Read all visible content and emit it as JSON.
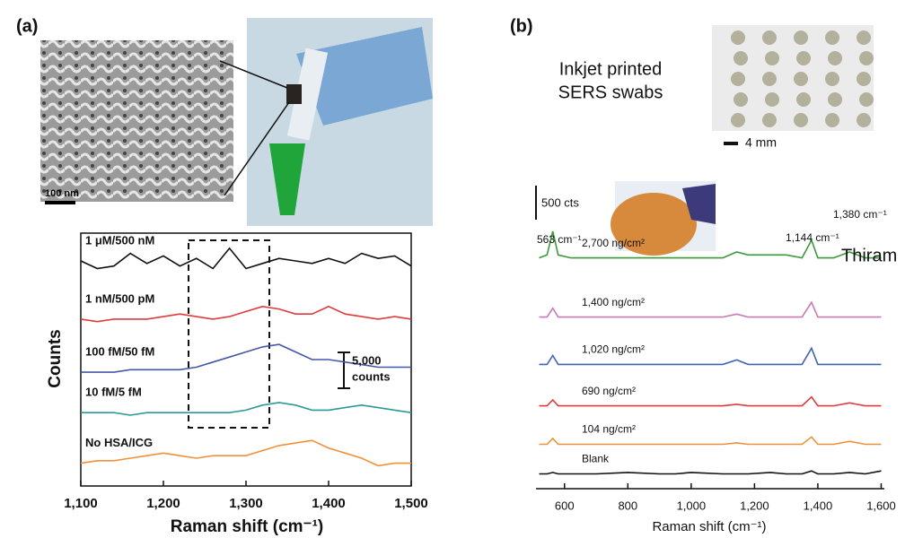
{
  "chart_data": [
    {
      "type": "line",
      "label": "(a)",
      "xlabel": "Raman shift (cm⁻¹)",
      "ylabel": "Counts",
      "xlim": [
        1100,
        1500
      ],
      "xticks": [
        {
          "value": 1100,
          "label": "1,100"
        },
        {
          "value": 1200,
          "label": "1,200"
        },
        {
          "value": 1300,
          "label": "1,300"
        },
        {
          "value": 1400,
          "label": "1,400"
        },
        {
          "value": 1500,
          "label": "1,500"
        }
      ],
      "ylim": [
        0,
        100
      ],
      "x": [
        1100,
        1120,
        1140,
        1160,
        1180,
        1200,
        1220,
        1240,
        1260,
        1280,
        1300,
        1320,
        1340,
        1360,
        1380,
        1400,
        1420,
        1440,
        1460,
        1480,
        1500
      ],
      "series": [
        {
          "name": "1 μM/500 nM",
          "color": "#111111",
          "values": [
            89,
            86,
            87,
            92,
            88,
            91,
            87,
            90,
            86,
            94,
            86,
            88,
            90,
            89,
            88,
            90,
            88,
            92,
            90,
            91,
            87
          ]
        },
        {
          "name": "1 nM/500 pM",
          "color": "#e0393e",
          "values": [
            66,
            65,
            66,
            66,
            66,
            67,
            68,
            67,
            66,
            67,
            69,
            71,
            70,
            68,
            68,
            71,
            68,
            67,
            66,
            67,
            66
          ]
        },
        {
          "name": "100 fM/50 fM",
          "color": "#4457a8",
          "values": [
            45,
            45,
            45,
            46,
            46,
            46,
            46,
            47,
            49,
            51,
            53,
            55,
            56,
            53,
            50,
            50,
            49,
            48,
            47,
            47,
            47
          ]
        },
        {
          "name": "10 fM/5 fM",
          "color": "#2a9a96",
          "values": [
            29,
            29,
            29,
            28,
            29,
            29,
            29,
            29,
            29,
            29,
            30,
            32,
            33,
            32,
            30,
            30,
            31,
            32,
            31,
            30,
            29
          ]
        },
        {
          "name": "No HSA/ICG",
          "color": "#f0913a",
          "values": [
            9,
            10,
            10,
            11,
            12,
            13,
            12,
            11,
            12,
            12,
            12,
            14,
            16,
            17,
            18,
            15,
            13,
            11,
            8,
            9,
            9
          ]
        }
      ],
      "annotations": [
        "100 nm",
        "5,000",
        "counts"
      ]
    },
    {
      "type": "line",
      "label": "(b)",
      "xlabel": "Raman shift (cm⁻¹)",
      "xlim": [
        510,
        1610
      ],
      "xticks": [
        600,
        800,
        {
          "value": 1000,
          "label": "1,000"
        },
        {
          "value": 1200,
          "label": "1,200"
        },
        {
          "value": 1400,
          "label": "1,400"
        },
        {
          "value": 1600,
          "label": "1,600"
        }
      ],
      "ylim": [
        0,
        100
      ],
      "x": [
        520,
        545,
        563,
        580,
        620,
        700,
        800,
        900,
        950,
        1000,
        1100,
        1144,
        1180,
        1250,
        1300,
        1350,
        1380,
        1400,
        1450,
        1500,
        1550,
        1600
      ],
      "series": [
        {
          "name": "2,700 ng/cm²",
          "color": "#3a9a3a",
          "values": [
            78,
            79,
            87,
            79,
            78,
            78,
            78,
            78,
            78,
            78,
            78,
            80,
            79,
            79,
            79,
            78,
            84,
            78,
            78,
            80,
            78,
            78
          ]
        },
        {
          "name": "1,400 ng/cm²",
          "color": "#c779b5",
          "values": [
            58,
            58,
            61,
            58,
            58,
            58,
            58,
            58,
            58,
            58,
            58,
            59,
            58,
            58,
            58,
            58,
            63,
            58,
            58,
            58,
            58,
            58
          ]
        },
        {
          "name": "1,020 ng/cm²",
          "color": "#3f64b0",
          "values": [
            42,
            42,
            45,
            42,
            42,
            42,
            42,
            42,
            42,
            42,
            42,
            43.5,
            42,
            42,
            42,
            42,
            47.5,
            42,
            42,
            42,
            42,
            42
          ]
        },
        {
          "name": "690 ng/cm²",
          "color": "#e0393e",
          "values": [
            28,
            28,
            30,
            28,
            28,
            28,
            28,
            28,
            28,
            28,
            28,
            28.5,
            28,
            28,
            28,
            28,
            31,
            28,
            28,
            29,
            28,
            28
          ]
        },
        {
          "name": "104 ng/cm²",
          "color": "#f0913a",
          "values": [
            15,
            15,
            17,
            15,
            15,
            15,
            15,
            15,
            15,
            15,
            15,
            15.5,
            15,
            15,
            15,
            15,
            17.5,
            15,
            15,
            16,
            15,
            15
          ]
        },
        {
          "name": "Blank",
          "color": "#111111",
          "values": [
            5,
            5,
            5.5,
            5,
            5,
            5,
            5.5,
            5,
            5,
            5.5,
            5,
            5,
            5,
            5.5,
            5,
            5,
            6,
            5,
            5,
            5.5,
            5,
            6
          ]
        }
      ],
      "annotations": [
        "Inkjet printed",
        "SERS swabs",
        "4 mm",
        "500 cts",
        "563 cm⁻¹",
        "1,144 cm⁻¹",
        "1,380 cm⁻¹",
        "Thiram"
      ]
    }
  ]
}
